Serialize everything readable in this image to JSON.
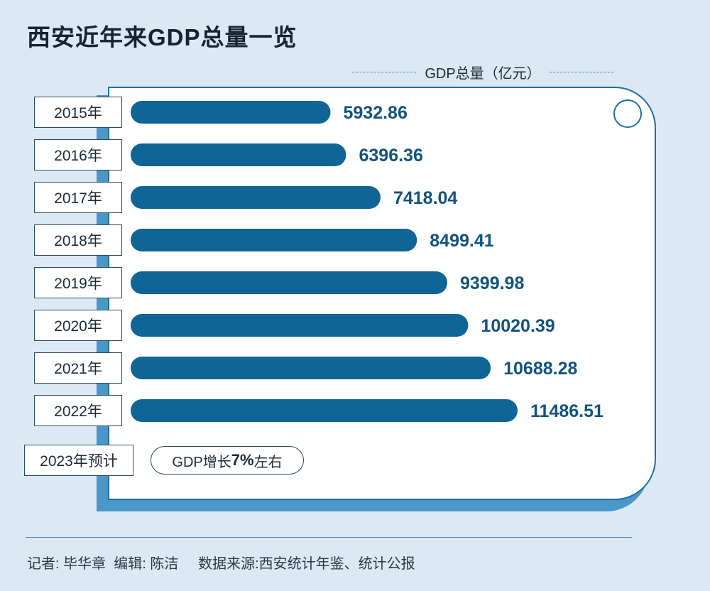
{
  "title": "西安近年来GDP总量一览",
  "unit_label": "GDP总量（亿元）",
  "colors": {
    "bar": "#0e6596",
    "value_text": "#12527d",
    "background": "#dce8f3",
    "card_shadow": "#4b97c8"
  },
  "chart_data": {
    "type": "bar",
    "orientation": "horizontal",
    "title": "西安近年来GDP总量一览",
    "ylabel": "GDP总量（亿元）",
    "categories": [
      "2015年",
      "2016年",
      "2017年",
      "2018年",
      "2019年",
      "2020年",
      "2021年",
      "2022年"
    ],
    "values": [
      5932.86,
      6396.36,
      7418.04,
      8499.41,
      9399.98,
      10020.39,
      10688.28,
      11486.51
    ],
    "value_labels": [
      "5932.86",
      "6396.36",
      "7418.04",
      "8499.41",
      "9399.98",
      "10020.39",
      "10688.28",
      "11486.51"
    ],
    "grid": false,
    "legend": "none"
  },
  "forecast": {
    "year_label": "2023年预计",
    "text_prefix": "GDP增长",
    "text_value": "7%",
    "text_suffix": "左右"
  },
  "footer": "记者: 毕华章  编辑: 陈洁     数据来源:西安统计年鉴、统计公报"
}
